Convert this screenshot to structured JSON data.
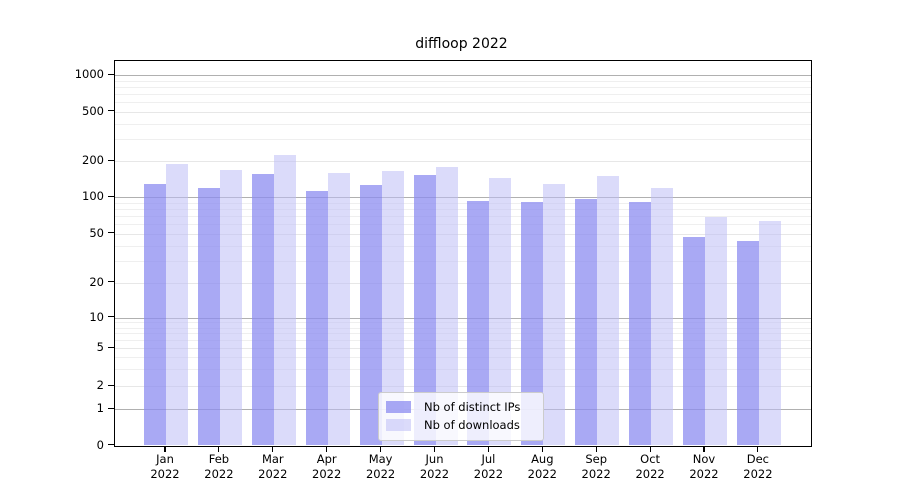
{
  "title": "diffloop 2022",
  "chart_data": {
    "type": "bar",
    "title": "diffloop 2022",
    "categories": [
      "Jan 2022",
      "Feb 2022",
      "Mar 2022",
      "Apr 2022",
      "May 2022",
      "Jun 2022",
      "Jul 2022",
      "Aug 2022",
      "Sep 2022",
      "Oct 2022",
      "Nov 2022",
      "Dec 2022"
    ],
    "x_tick_months": [
      "Jan",
      "Feb",
      "Mar",
      "Apr",
      "May",
      "Jun",
      "Jul",
      "Aug",
      "Sep",
      "Oct",
      "Nov",
      "Dec"
    ],
    "x_tick_year": "2022",
    "series": [
      {
        "name": "Nb of distinct IPs",
        "color": "rgba(140,140,240,0.75)",
        "values": [
          128,
          120,
          155,
          112,
          125,
          152,
          93,
          91,
          96,
          91,
          47,
          44
        ]
      },
      {
        "name": "Nb of downloads",
        "color": "rgba(190,190,245,0.55)",
        "values": [
          190,
          168,
          225,
          159,
          165,
          178,
          143,
          128,
          150,
          118,
          68,
          64
        ]
      }
    ],
    "yscale": "symlog",
    "y_ticks": [
      0,
      1,
      2,
      5,
      10,
      20,
      50,
      100,
      200,
      500,
      1000
    ],
    "y_minor_ticks": [
      3,
      4,
      6,
      7,
      8,
      9,
      30,
      40,
      60,
      70,
      80,
      90,
      300,
      400,
      600,
      700,
      800,
      900
    ],
    "ylim": [
      0,
      1400
    ],
    "grid": "on",
    "legend_position": "lower center",
    "colors": {
      "major_gridline": "#b0b0b0",
      "minor_gridline": "#efefef",
      "axis_frame": "#000000"
    }
  }
}
